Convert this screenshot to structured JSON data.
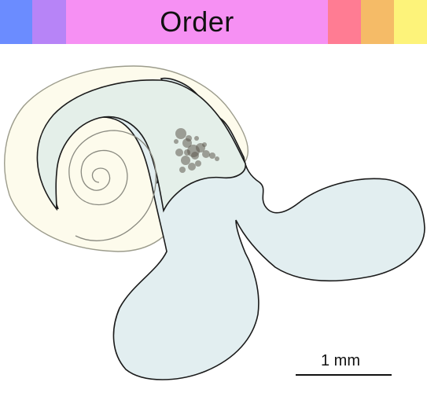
{
  "banner": {
    "title": "Order",
    "segments": [
      {
        "name": "blue",
        "color": "#6b8cff"
      },
      {
        "name": "purple",
        "color": "#b784f7"
      },
      {
        "name": "pink",
        "color": "#f690f3"
      },
      {
        "name": "red",
        "color": "#ff7c93"
      },
      {
        "name": "orange",
        "color": "#f5bb67"
      },
      {
        "name": "yellow",
        "color": "#fdf37a"
      }
    ]
  },
  "scale_bar": {
    "label": "1 mm"
  },
  "colors": {
    "shell_fill": "#fdfbec",
    "inner_fill": "#e4efe9",
    "lobe_fill": "#e2eef0",
    "outline": "#1a1a1a",
    "shell_outline": "#9c9c8c",
    "cluster": "#5f5a50"
  }
}
